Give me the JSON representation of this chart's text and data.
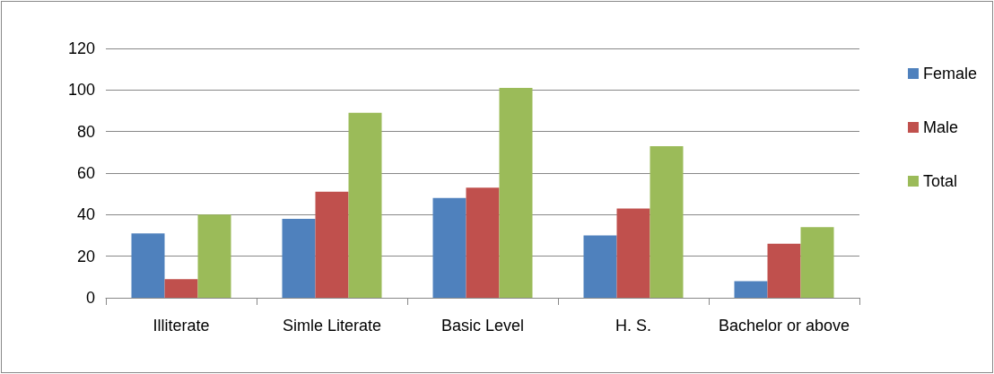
{
  "chart_data": {
    "type": "bar",
    "categories": [
      "Illiterate",
      "Simle Literate",
      "Basic Level",
      "H. S.",
      "Bachelor or above"
    ],
    "series": [
      {
        "name": "Female",
        "color": "#4f81bd",
        "values": [
          31,
          38,
          48,
          30,
          8
        ]
      },
      {
        "name": "Male",
        "color": "#c0504d",
        "values": [
          9,
          51,
          53,
          43,
          26
        ]
      },
      {
        "name": "Total",
        "color": "#9bbb59",
        "values": [
          40,
          89,
          101,
          73,
          34
        ]
      }
    ],
    "ylim": [
      0,
      120
    ],
    "yticks": [
      0,
      20,
      40,
      60,
      80,
      100,
      120
    ],
    "grid": "y",
    "legend": "right"
  }
}
